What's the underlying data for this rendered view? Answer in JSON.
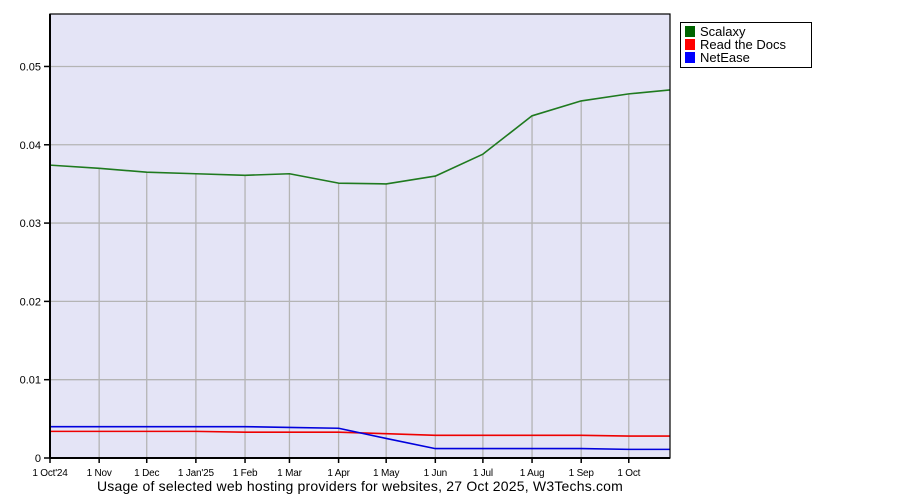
{
  "page": {
    "background": "#ffffff"
  },
  "chart_data": {
    "type": "line",
    "caption": "Usage of selected web hosting providers for websites, 27 Oct 2025, W3Techs.com",
    "x_axis": {
      "tick_labels": [
        "1 Oct'24",
        "1 Nov",
        "1 Dec",
        "1 Jan'25",
        "1 Feb",
        "1 Mar",
        "1 Apr",
        "1 May",
        "1 Jun",
        "1 Jul",
        "1 Aug",
        "1 Sep",
        "1 Oct"
      ],
      "tick_days": [
        0,
        31,
        61,
        92,
        123,
        151,
        182,
        212,
        243,
        273,
        304,
        335,
        365
      ],
      "max_day": 391
    },
    "y_axis": {
      "tick_labels": [
        "0",
        "0.01",
        "0.02",
        "0.03",
        "0.04",
        "0.05"
      ],
      "tick_values": [
        0,
        0.01,
        0.02,
        0.03,
        0.04,
        0.05
      ],
      "ylim": [
        0,
        0.0567
      ]
    },
    "point_days": [
      0,
      31,
      61,
      92,
      123,
      151,
      182,
      212,
      243,
      273,
      304,
      335,
      365,
      391
    ],
    "series": [
      {
        "name": "Scalaxy",
        "legend_color": "#006400",
        "line_color": "#1f7a1f",
        "values": [
          0.0374,
          0.037,
          0.0365,
          0.0363,
          0.0361,
          0.0363,
          0.0351,
          0.035,
          0.036,
          0.0388,
          0.0437,
          0.0456,
          0.0465,
          0.047
        ]
      },
      {
        "name": "Read the Docs",
        "legend_color": "#ff0000",
        "line_color": "#ee0000",
        "values": [
          0.0034,
          0.0034,
          0.0034,
          0.0034,
          0.0033,
          0.0033,
          0.0033,
          0.0031,
          0.0029,
          0.0029,
          0.0029,
          0.0029,
          0.0028,
          0.0028
        ]
      },
      {
        "name": "NetEase",
        "legend_color": "#0000ff",
        "line_color": "#0000dd",
        "values": [
          0.004,
          0.004,
          0.004,
          0.004,
          0.004,
          0.0039,
          0.0038,
          0.0025,
          0.0012,
          0.0012,
          0.0012,
          0.0012,
          0.0011,
          0.0011
        ]
      }
    ],
    "grid": true,
    "legend_position": "top-right",
    "colors": {
      "plot_background": "#e4e4f6",
      "gridline": "#b4b4b4",
      "axis": "#000000"
    }
  }
}
